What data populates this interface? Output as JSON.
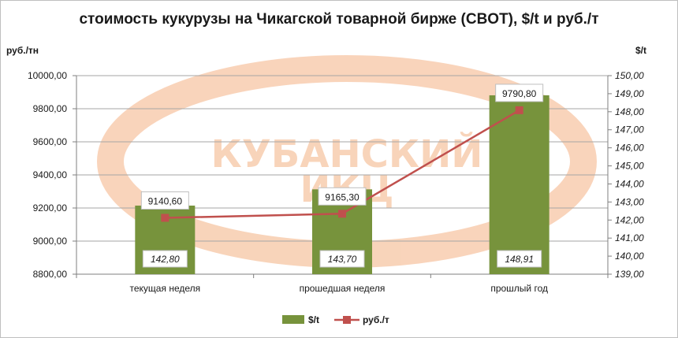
{
  "chart_data": {
    "type": "bar",
    "title": "стоимость кукурузы на Чикагской товарной бирже (CBOT), $/t и руб./т",
    "categories": [
      "текущая неделя",
      "прошедшая неделя",
      "прошлый год"
    ],
    "series": [
      {
        "name": "$/t",
        "type": "bar",
        "axis": "right",
        "color": "#77933c",
        "values": [
          142.8,
          143.7,
          148.91
        ],
        "labels": [
          "142,80",
          "143,70",
          "148,91"
        ]
      },
      {
        "name": "руб./т",
        "type": "line",
        "axis": "left",
        "color": "#c0504d",
        "values": [
          9140.6,
          9165.3,
          9790.8
        ],
        "labels": [
          "9140,60",
          "9165,30",
          "9790,80"
        ]
      }
    ],
    "ylabel_left": "руб./тн",
    "ylabel_right": "$/t",
    "ylim_left": [
      8800,
      10000
    ],
    "ylim_right": [
      139,
      150
    ],
    "yticks_left": [
      "8800,00",
      "9000,00",
      "9200,00",
      "9400,00",
      "9600,00",
      "9800,00",
      "10000,00"
    ],
    "yticks_right": [
      "139,00",
      "140,00",
      "141,00",
      "142,00",
      "143,00",
      "144,00",
      "145,00",
      "146,00",
      "147,00",
      "148,00",
      "149,00",
      "150,00"
    ],
    "grid": true,
    "legend_position": "bottom"
  },
  "watermark": {
    "text_line1": "КУБАНСКИЙ",
    "text_line2": "ИКЦ",
    "color": "#f4b183"
  }
}
